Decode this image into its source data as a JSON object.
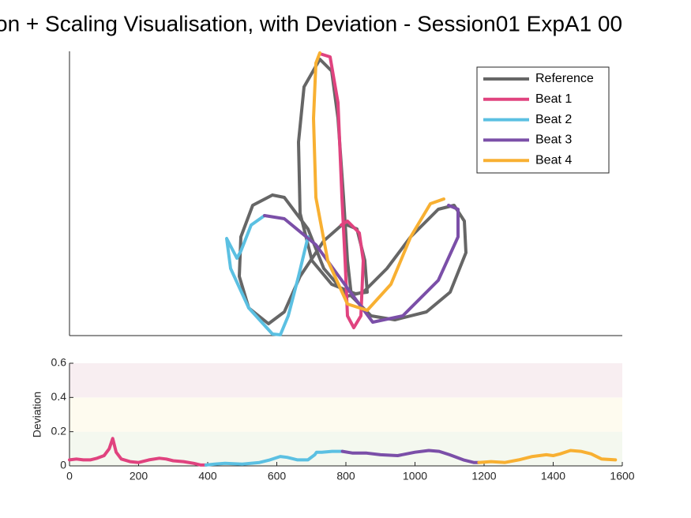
{
  "chart_data": [
    {
      "type": "line",
      "title": "on + Scaling Visualisation, with Deviation - Session01 ExpA1 00",
      "xlim": [
        0,
        700
      ],
      "ylim": [
        0,
        360
      ],
      "legend": "upper right",
      "series": [
        {
          "name": "Reference",
          "color": "#666666",
          "x": [
            257,
            232,
            217,
            215,
            227,
            252,
            272,
            292,
            322,
            347,
            364,
            374,
            377,
            362,
            332,
            307,
            292,
            290,
            297,
            317,
            332,
            340,
            347,
            352,
            357,
            382,
            412,
            452,
            482,
            502,
            500,
            487,
            467,
            432,
            402,
            372,
            352,
            322,
            302,
            287,
            272,
            257
          ],
          "values": [
            178,
            165,
            125,
            75,
            35,
            15,
            30,
            75,
            120,
            142,
            135,
            95,
            55,
            53,
            65,
            95,
            155,
            245,
            315,
            350,
            335,
            275,
            175,
            95,
            50,
            25,
            20,
            30,
            55,
            105,
            145,
            165,
            160,
            125,
            85,
            55,
            50,
            85,
            135,
            155,
            175,
            178
          ]
        },
        {
          "name": "Beat 1",
          "color": "#e0437f",
          "x": [
            317,
            330,
            340,
            345,
            349,
            352,
            360,
            369,
            372,
            367,
            352,
            344
          ],
          "values": [
            357,
            353,
            295,
            175,
            95,
            25,
            10,
            25,
            95,
            130,
            145,
            140
          ]
        },
        {
          "name": "Beat 2",
          "color": "#5bc0e2",
          "x": [
            247,
            230,
            217,
            212,
            199,
            204,
            227,
            257,
            267,
            277,
            290,
            302
          ],
          "values": [
            152,
            140,
            107,
            98,
            123,
            85,
            35,
            2,
            1,
            25,
            75,
            125
          ]
        },
        {
          "name": "Beat 3",
          "color": "#7b4fa8",
          "x": [
            247,
            272,
            312,
            352,
            384,
            422,
            467,
            492,
            492,
            480
          ],
          "values": [
            152,
            148,
            115,
            60,
            17,
            25,
            70,
            125,
            160,
            165
          ]
        },
        {
          "name": "Beat 4",
          "color": "#f8b032",
          "x": [
            474,
            457,
            432,
            407,
            377,
            352,
            327,
            312,
            309,
            312,
            317
          ],
          "values": [
            173,
            167,
            125,
            65,
            32,
            40,
            95,
            175,
            275,
            345,
            358
          ]
        }
      ]
    },
    {
      "type": "line",
      "ylabel": "Deviation",
      "xlim": [
        0,
        1600
      ],
      "ylim": [
        0,
        0.6
      ],
      "xticks": [
        0,
        200,
        400,
        600,
        800,
        1000,
        1200,
        1400,
        1600
      ],
      "yticks": [
        0,
        0.2,
        0.4,
        0.6
      ],
      "bands": [
        {
          "from": 0,
          "to": 0.2,
          "color": "#f4f8ef"
        },
        {
          "from": 0.2,
          "to": 0.4,
          "color": "#fefbef"
        },
        {
          "from": 0.4,
          "to": 0.6,
          "color": "#f8eef1"
        }
      ],
      "series": [
        {
          "color": "#e0437f",
          "x": [
            0,
            20,
            40,
            60,
            80,
            100,
            115,
            125,
            135,
            150,
            175,
            200,
            230,
            260,
            280,
            300,
            330,
            360,
            380,
            395
          ],
          "values": [
            0.035,
            0.04,
            0.035,
            0.035,
            0.045,
            0.06,
            0.1,
            0.16,
            0.08,
            0.04,
            0.025,
            0.02,
            0.035,
            0.045,
            0.04,
            0.03,
            0.025,
            0.015,
            0.005,
            0.005
          ]
        },
        {
          "color": "#5bc0e2",
          "x": [
            395,
            420,
            450,
            500,
            550,
            580,
            610,
            630,
            660,
            690,
            710,
            715,
            730,
            760,
            790
          ],
          "values": [
            0.005,
            0.01,
            0.015,
            0.01,
            0.02,
            0.035,
            0.055,
            0.05,
            0.035,
            0.035,
            0.065,
            0.08,
            0.08,
            0.085,
            0.085
          ]
        },
        {
          "color": "#7b4fa8",
          "x": [
            790,
            820,
            860,
            900,
            950,
            1000,
            1040,
            1070,
            1100,
            1140,
            1170,
            1185
          ],
          "values": [
            0.085,
            0.075,
            0.075,
            0.065,
            0.06,
            0.08,
            0.09,
            0.085,
            0.065,
            0.035,
            0.02,
            0.02
          ]
        },
        {
          "color": "#f8b032",
          "x": [
            1185,
            1220,
            1260,
            1300,
            1340,
            1380,
            1400,
            1420,
            1450,
            1480,
            1510,
            1540,
            1580
          ],
          "values": [
            0.02,
            0.025,
            0.02,
            0.035,
            0.055,
            0.065,
            0.06,
            0.07,
            0.09,
            0.085,
            0.07,
            0.04,
            0.035
          ]
        }
      ]
    }
  ]
}
